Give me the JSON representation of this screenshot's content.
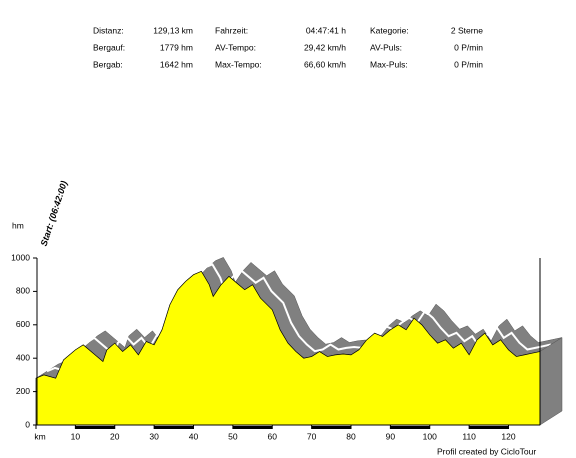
{
  "stats": {
    "rows": [
      [
        {
          "label": "Distanz:",
          "value": "129,13 km"
        },
        {
          "label": "Fahrzeit:",
          "value": "04:47:41 h"
        },
        {
          "label": "Kategorie:",
          "value": "2 Sterne"
        }
      ],
      [
        {
          "label": "Bergauf:",
          "value": "1779 hm"
        },
        {
          "label": "AV-Tempo:",
          "value": "29,42 km/h"
        },
        {
          "label": "AV-Puls:",
          "value": "0 P/min"
        }
      ],
      [
        {
          "label": "Bergab:",
          "value": "1642 hm"
        },
        {
          "label": "Max-Tempo:",
          "value": "66,60 km/h"
        },
        {
          "label": "Max-Puls:",
          "value": "0 P/min"
        }
      ]
    ]
  },
  "chart_data": {
    "type": "area",
    "y_label": "hm",
    "annotation": "Start: (06:42:00)",
    "credit": "Profil created by CicloTour",
    "color": "#ffff00",
    "shadow_color": "#808080",
    "x": [
      0,
      2,
      5,
      7,
      10,
      12,
      15,
      17,
      18,
      20,
      22,
      24,
      26,
      28,
      30,
      32,
      34,
      36,
      38,
      40,
      42,
      44,
      45,
      47,
      49,
      51,
      53,
      55,
      57,
      60,
      62,
      64,
      66,
      68,
      70,
      72,
      74,
      76,
      78,
      80,
      82,
      84,
      86,
      88,
      90,
      92,
      94,
      96,
      98,
      100,
      102,
      104,
      106,
      108,
      110,
      112,
      114,
      116,
      118,
      120,
      122,
      124,
      126,
      128
    ],
    "values": [
      280,
      300,
      280,
      390,
      450,
      480,
      420,
      380,
      450,
      490,
      440,
      480,
      420,
      500,
      480,
      570,
      720,
      810,
      860,
      900,
      920,
      840,
      770,
      840,
      890,
      850,
      810,
      840,
      760,
      690,
      570,
      490,
      440,
      400,
      410,
      440,
      410,
      420,
      425,
      420,
      450,
      510,
      550,
      530,
      570,
      600,
      570,
      640,
      600,
      540,
      490,
      510,
      460,
      490,
      420,
      510,
      550,
      480,
      510,
      450,
      410,
      420,
      430,
      440
    ],
    "xlim": [
      0,
      128
    ],
    "ylim": [
      0,
      1000
    ],
    "xticks": [
      {
        "value": 0,
        "label": "km"
      },
      10,
      20,
      30,
      40,
      50,
      60,
      70,
      80,
      90,
      100,
      110,
      120
    ],
    "yticks": [
      0,
      200,
      400,
      600,
      800,
      1000
    ]
  }
}
